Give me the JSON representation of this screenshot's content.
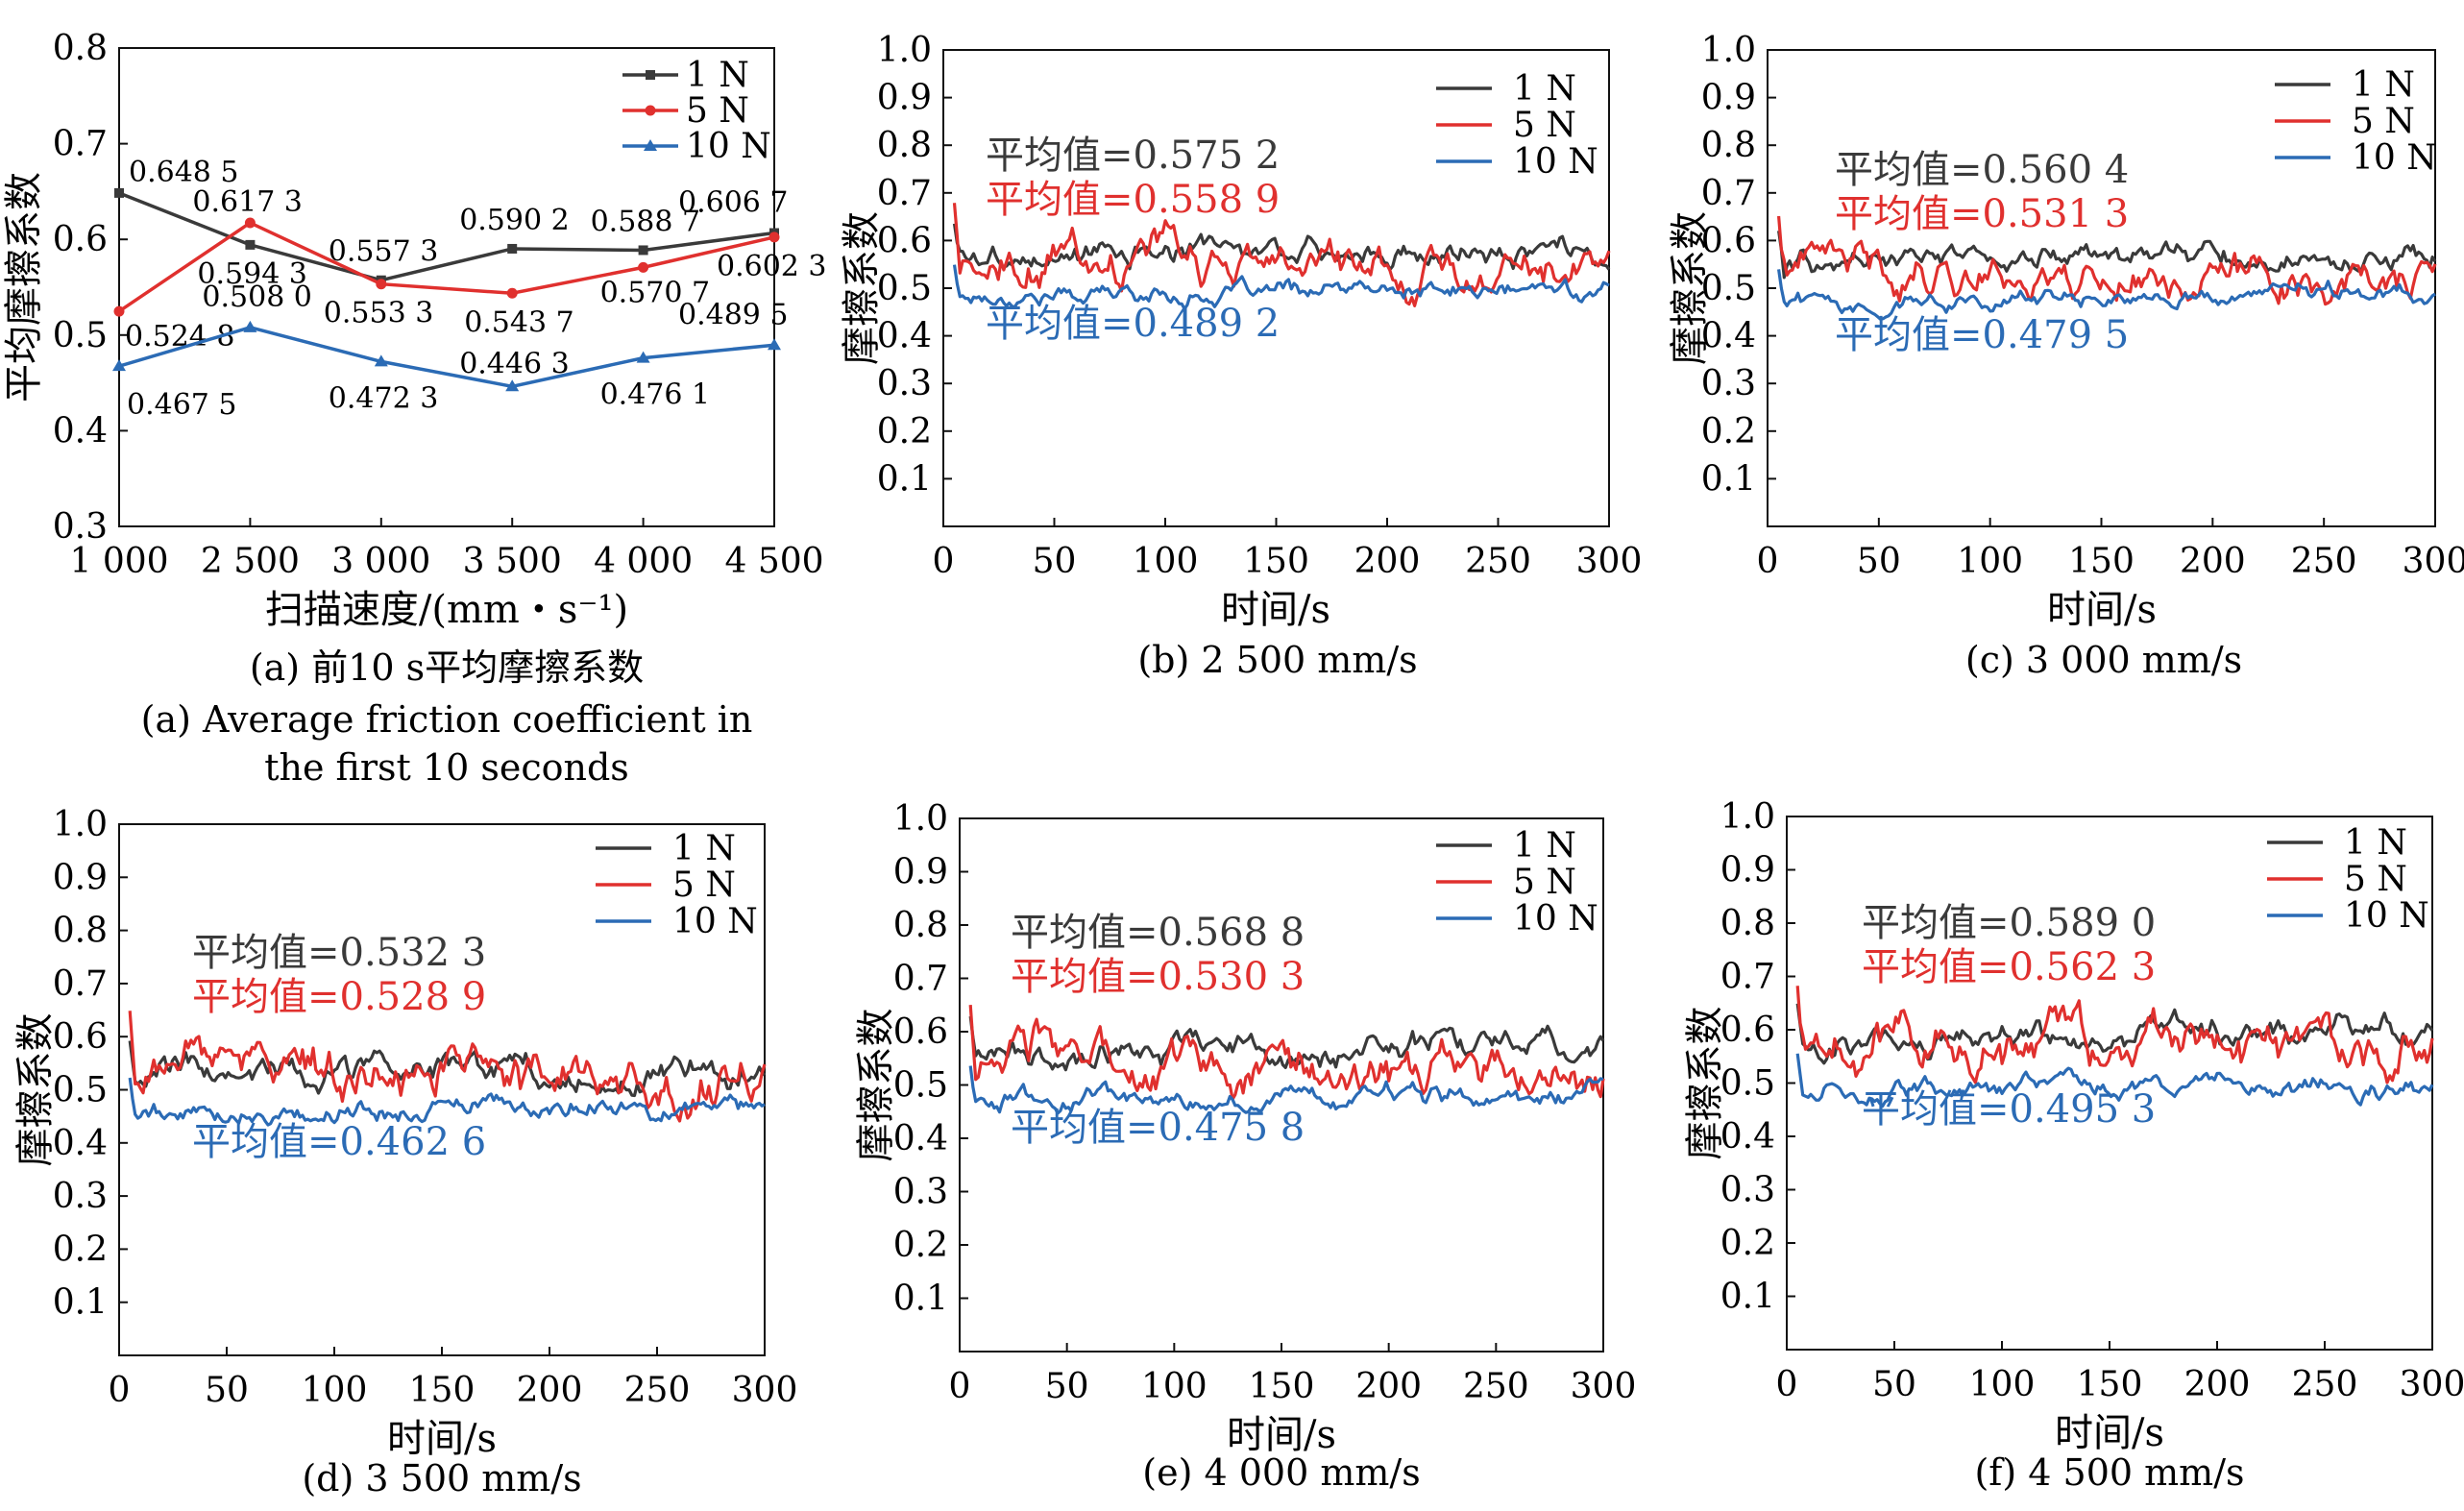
{
  "colors": {
    "s1": "#3a3a3a",
    "s5": "#e0302e",
    "s10": "#2b6bb5",
    "axis": "#111111"
  },
  "chart_data": [
    {
      "type": "line",
      "caption": "(a) 前10 s平均摩擦系数",
      "caption_en": [
        "(a) Average friction coefficient in",
        "the first 10 seconds"
      ],
      "xlabel": "扫描速度/(mm・s⁻¹)",
      "ylabel": "平均摩擦系数",
      "categories": [
        "1 000",
        "2 500",
        "3 000",
        "3 500",
        "4 000",
        "4 500"
      ],
      "ylim": [
        0.3,
        0.8
      ],
      "yticks": [
        "0.3",
        "0.4",
        "0.5",
        "0.6",
        "0.7",
        "0.8"
      ],
      "legend_position": "top-right",
      "series": [
        {
          "name": "1 N",
          "values": [
            0.6485,
            0.5943,
            0.5573,
            0.5902,
            0.5887,
            0.6067
          ],
          "labels": [
            "0.648 5",
            "0.594 3",
            "0.557 3",
            "0.590 2",
            "0.588 7",
            "0.606 7"
          ]
        },
        {
          "name": "5 N",
          "values": [
            0.5248,
            0.6173,
            0.5533,
            0.5437,
            0.5707,
            0.6023
          ],
          "labels": [
            "0.524 8",
            "0.617 3",
            "0.553 3",
            "0.543 7",
            "0.570 7",
            "0.602 3"
          ]
        },
        {
          "name": "10 N",
          "values": [
            0.4675,
            0.508,
            0.4723,
            0.4463,
            0.4761,
            0.4895
          ],
          "labels": [
            "0.467 5",
            "0.508 0",
            "0.472 3",
            "0.446 3",
            "0.476 1",
            "0.489 5"
          ]
        }
      ]
    },
    {
      "type": "line",
      "caption": "(b) 2 500 mm/s",
      "xlabel": "时间/s",
      "ylabel": "摩擦系数",
      "xlim": [
        0,
        300
      ],
      "ylim": [
        0,
        1.0
      ],
      "legend_position": "top-right",
      "series": [
        {
          "name": "1 N",
          "mean_label": "平均值=0.575 2",
          "mean": 0.5752
        },
        {
          "name": "5 N",
          "mean_label": "平均值=0.558 9",
          "mean": 0.5589
        },
        {
          "name": "10 N",
          "mean_label": "平均值=0.489 2",
          "mean": 0.4892
        }
      ]
    },
    {
      "type": "line",
      "caption": "(c) 3 000 mm/s",
      "xlabel": "时间/s",
      "ylabel": "摩擦系数",
      "xlim": [
        0,
        300
      ],
      "ylim": [
        0,
        1.0
      ],
      "legend_position": "top-right",
      "series": [
        {
          "name": "1 N",
          "mean_label": "平均值=0.560 4",
          "mean": 0.5604
        },
        {
          "name": "5 N",
          "mean_label": "平均值=0.531 3",
          "mean": 0.5313
        },
        {
          "name": "10 N",
          "mean_label": "平均值=0.479 5",
          "mean": 0.4795
        }
      ]
    },
    {
      "type": "line",
      "caption": "(d) 3 500 mm/s",
      "xlabel": "时间/s",
      "ylabel": "摩擦系数",
      "xlim": [
        0,
        300
      ],
      "ylim": [
        0,
        1.0
      ],
      "legend_position": "top-right",
      "series": [
        {
          "name": "1 N",
          "mean_label": "平均值=0.532 3",
          "mean": 0.5323
        },
        {
          "name": "5 N",
          "mean_label": "平均值=0.528 9",
          "mean": 0.5289
        },
        {
          "name": "10 N",
          "mean_label": "平均值=0.462 6",
          "mean": 0.4626
        }
      ]
    },
    {
      "type": "line",
      "caption": "(e) 4 000 mm/s",
      "xlabel": "时间/s",
      "ylabel": "摩擦系数",
      "xlim": [
        0,
        300
      ],
      "ylim": [
        0,
        1.0
      ],
      "legend_position": "top-right",
      "series": [
        {
          "name": "1 N",
          "mean_label": "平均值=0.568 8",
          "mean": 0.5688
        },
        {
          "name": "5 N",
          "mean_label": "平均值=0.530 3",
          "mean": 0.5303
        },
        {
          "name": "10 N",
          "mean_label": "平均值=0.475 8",
          "mean": 0.4758
        }
      ]
    },
    {
      "type": "line",
      "caption": "(f) 4 500 mm/s",
      "xlabel": "时间/s",
      "ylabel": "摩擦系数",
      "xlim": [
        0,
        300
      ],
      "ylim": [
        0,
        1.0
      ],
      "legend_position": "top-right",
      "series": [
        {
          "name": "1 N",
          "mean_label": "平均值=0.589 0",
          "mean": 0.589
        },
        {
          "name": "5 N",
          "mean_label": "平均值=0.562 3",
          "mean": 0.5623
        },
        {
          "name": "10 N",
          "mean_label": "平均值=0.495 3",
          "mean": 0.4953
        }
      ]
    }
  ]
}
